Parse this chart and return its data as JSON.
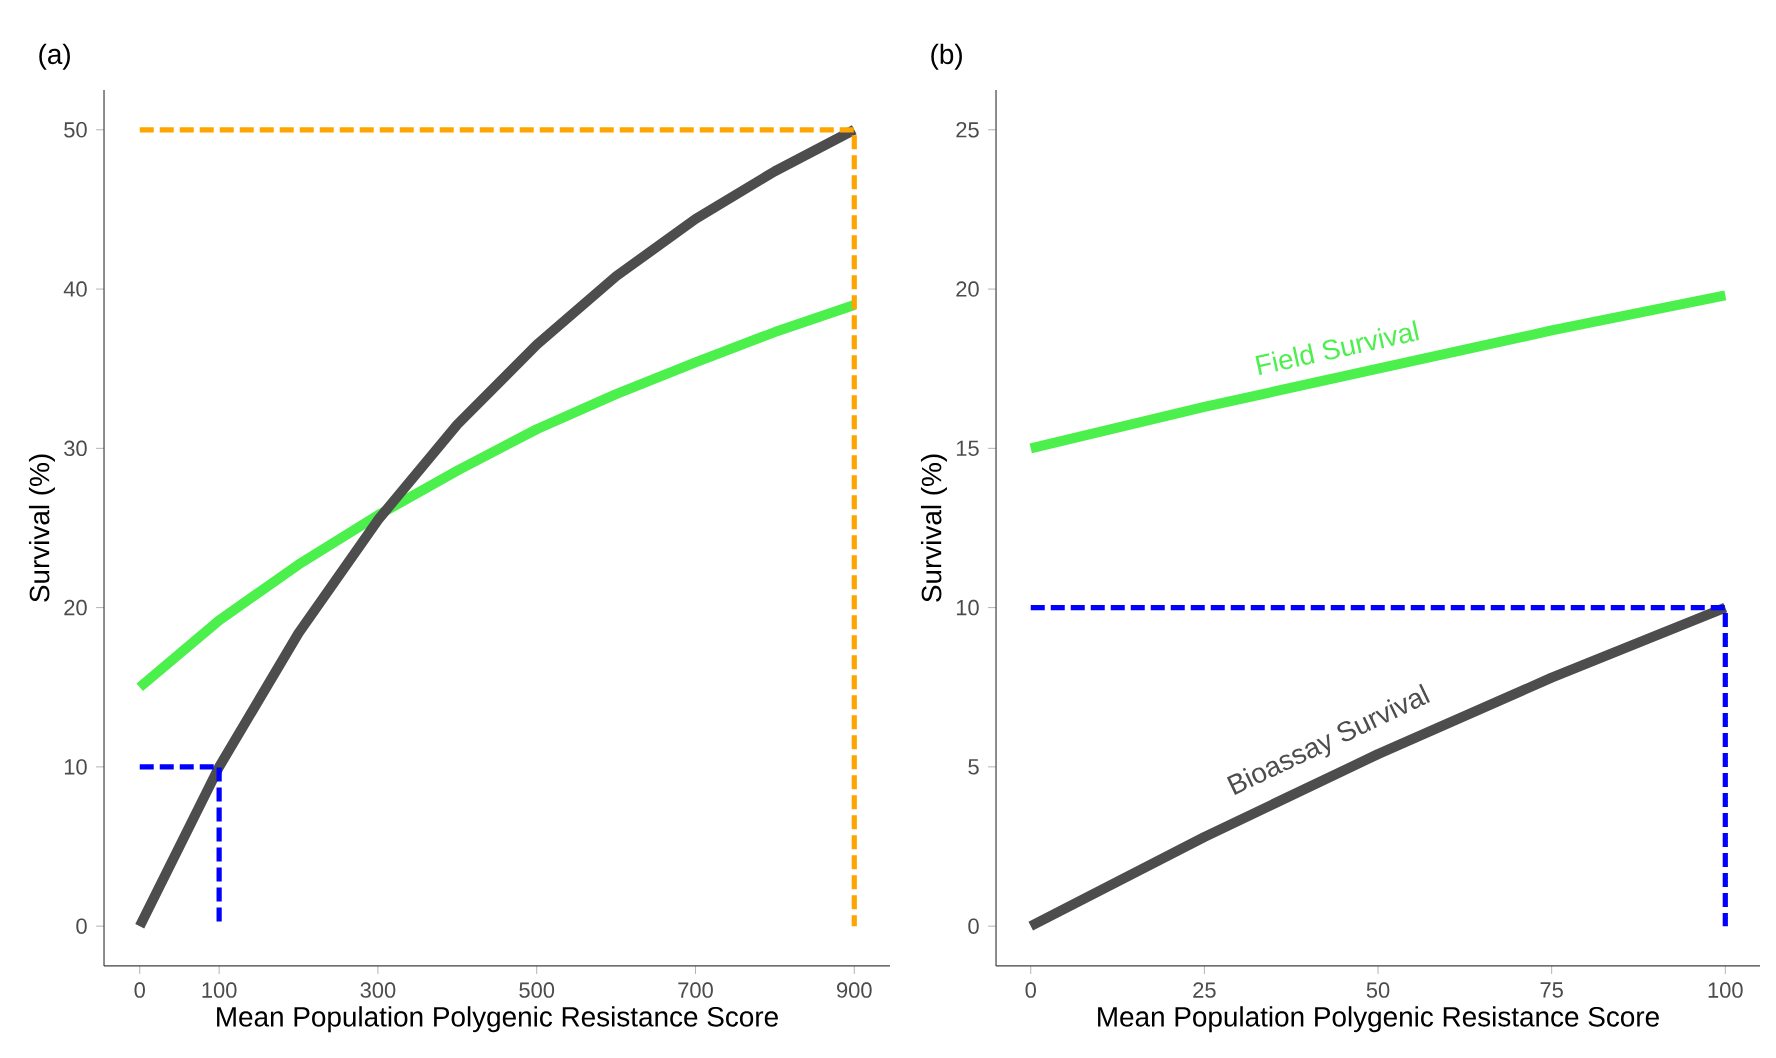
{
  "chart_data": [
    {
      "type": "line",
      "title": "(a)",
      "xlabel": "Mean Population Polygenic Resistance Score",
      "ylabel": "Survival (%)",
      "xlim": [
        -45,
        945
      ],
      "ylim": [
        -2.5,
        52.5
      ],
      "xticks": [
        0,
        100,
        300,
        500,
        700,
        900
      ],
      "yticks": [
        0,
        10,
        20,
        30,
        40,
        50
      ],
      "grid": false,
      "marker": "none",
      "series": [
        {
          "color": "#4cf04c",
          "line_style": "solid",
          "x": [
            0,
            100,
            200,
            300,
            400,
            500,
            600,
            700,
            800,
            900
          ],
          "values": [
            15,
            19.2,
            22.7,
            25.8,
            28.6,
            31.2,
            33.4,
            35.4,
            37.3,
            39
          ]
        },
        {
          "color": "#4d4d4d",
          "line_style": "solid",
          "x": [
            0,
            100,
            200,
            300,
            400,
            500,
            600,
            700,
            800,
            900
          ],
          "values": [
            0,
            10,
            18.4,
            25.5,
            31.5,
            36.5,
            40.8,
            44.4,
            47.4,
            50
          ]
        },
        {
          "color": "#0000ff",
          "line_style": "dashed",
          "x": [
            0,
            100,
            100
          ],
          "values": [
            10,
            10,
            0
          ]
        },
        {
          "color": "#ffa500",
          "line_style": "dashed",
          "x": [
            0,
            900,
            900
          ],
          "values": [
            50,
            50,
            0
          ]
        }
      ]
    },
    {
      "type": "line",
      "title": "(b)",
      "xlabel": "Mean Population Polygenic Resistance Score",
      "ylabel": "Survival (%)",
      "xlim": [
        -5,
        105
      ],
      "ylim": [
        -1.25,
        26.25
      ],
      "xticks": [
        0,
        25,
        50,
        75,
        100
      ],
      "yticks": [
        0,
        5,
        10,
        15,
        20,
        25
      ],
      "grid": false,
      "marker": "none",
      "series": [
        {
          "name": "Field Survival",
          "color": "#4cf04c",
          "line_style": "solid",
          "x": [
            0,
            25,
            50,
            75,
            100
          ],
          "values": [
            15,
            16.3,
            17.5,
            18.7,
            19.8
          ]
        },
        {
          "name": "Bioassay Survival",
          "color": "#4d4d4d",
          "line_style": "solid",
          "x": [
            0,
            25,
            50,
            75,
            100
          ],
          "values": [
            0,
            2.8,
            5.4,
            7.8,
            10
          ]
        },
        {
          "color": "#0000ff",
          "line_style": "dashed",
          "x": [
            0,
            100,
            100
          ],
          "values": [
            10,
            10,
            0
          ]
        }
      ]
    }
  ]
}
